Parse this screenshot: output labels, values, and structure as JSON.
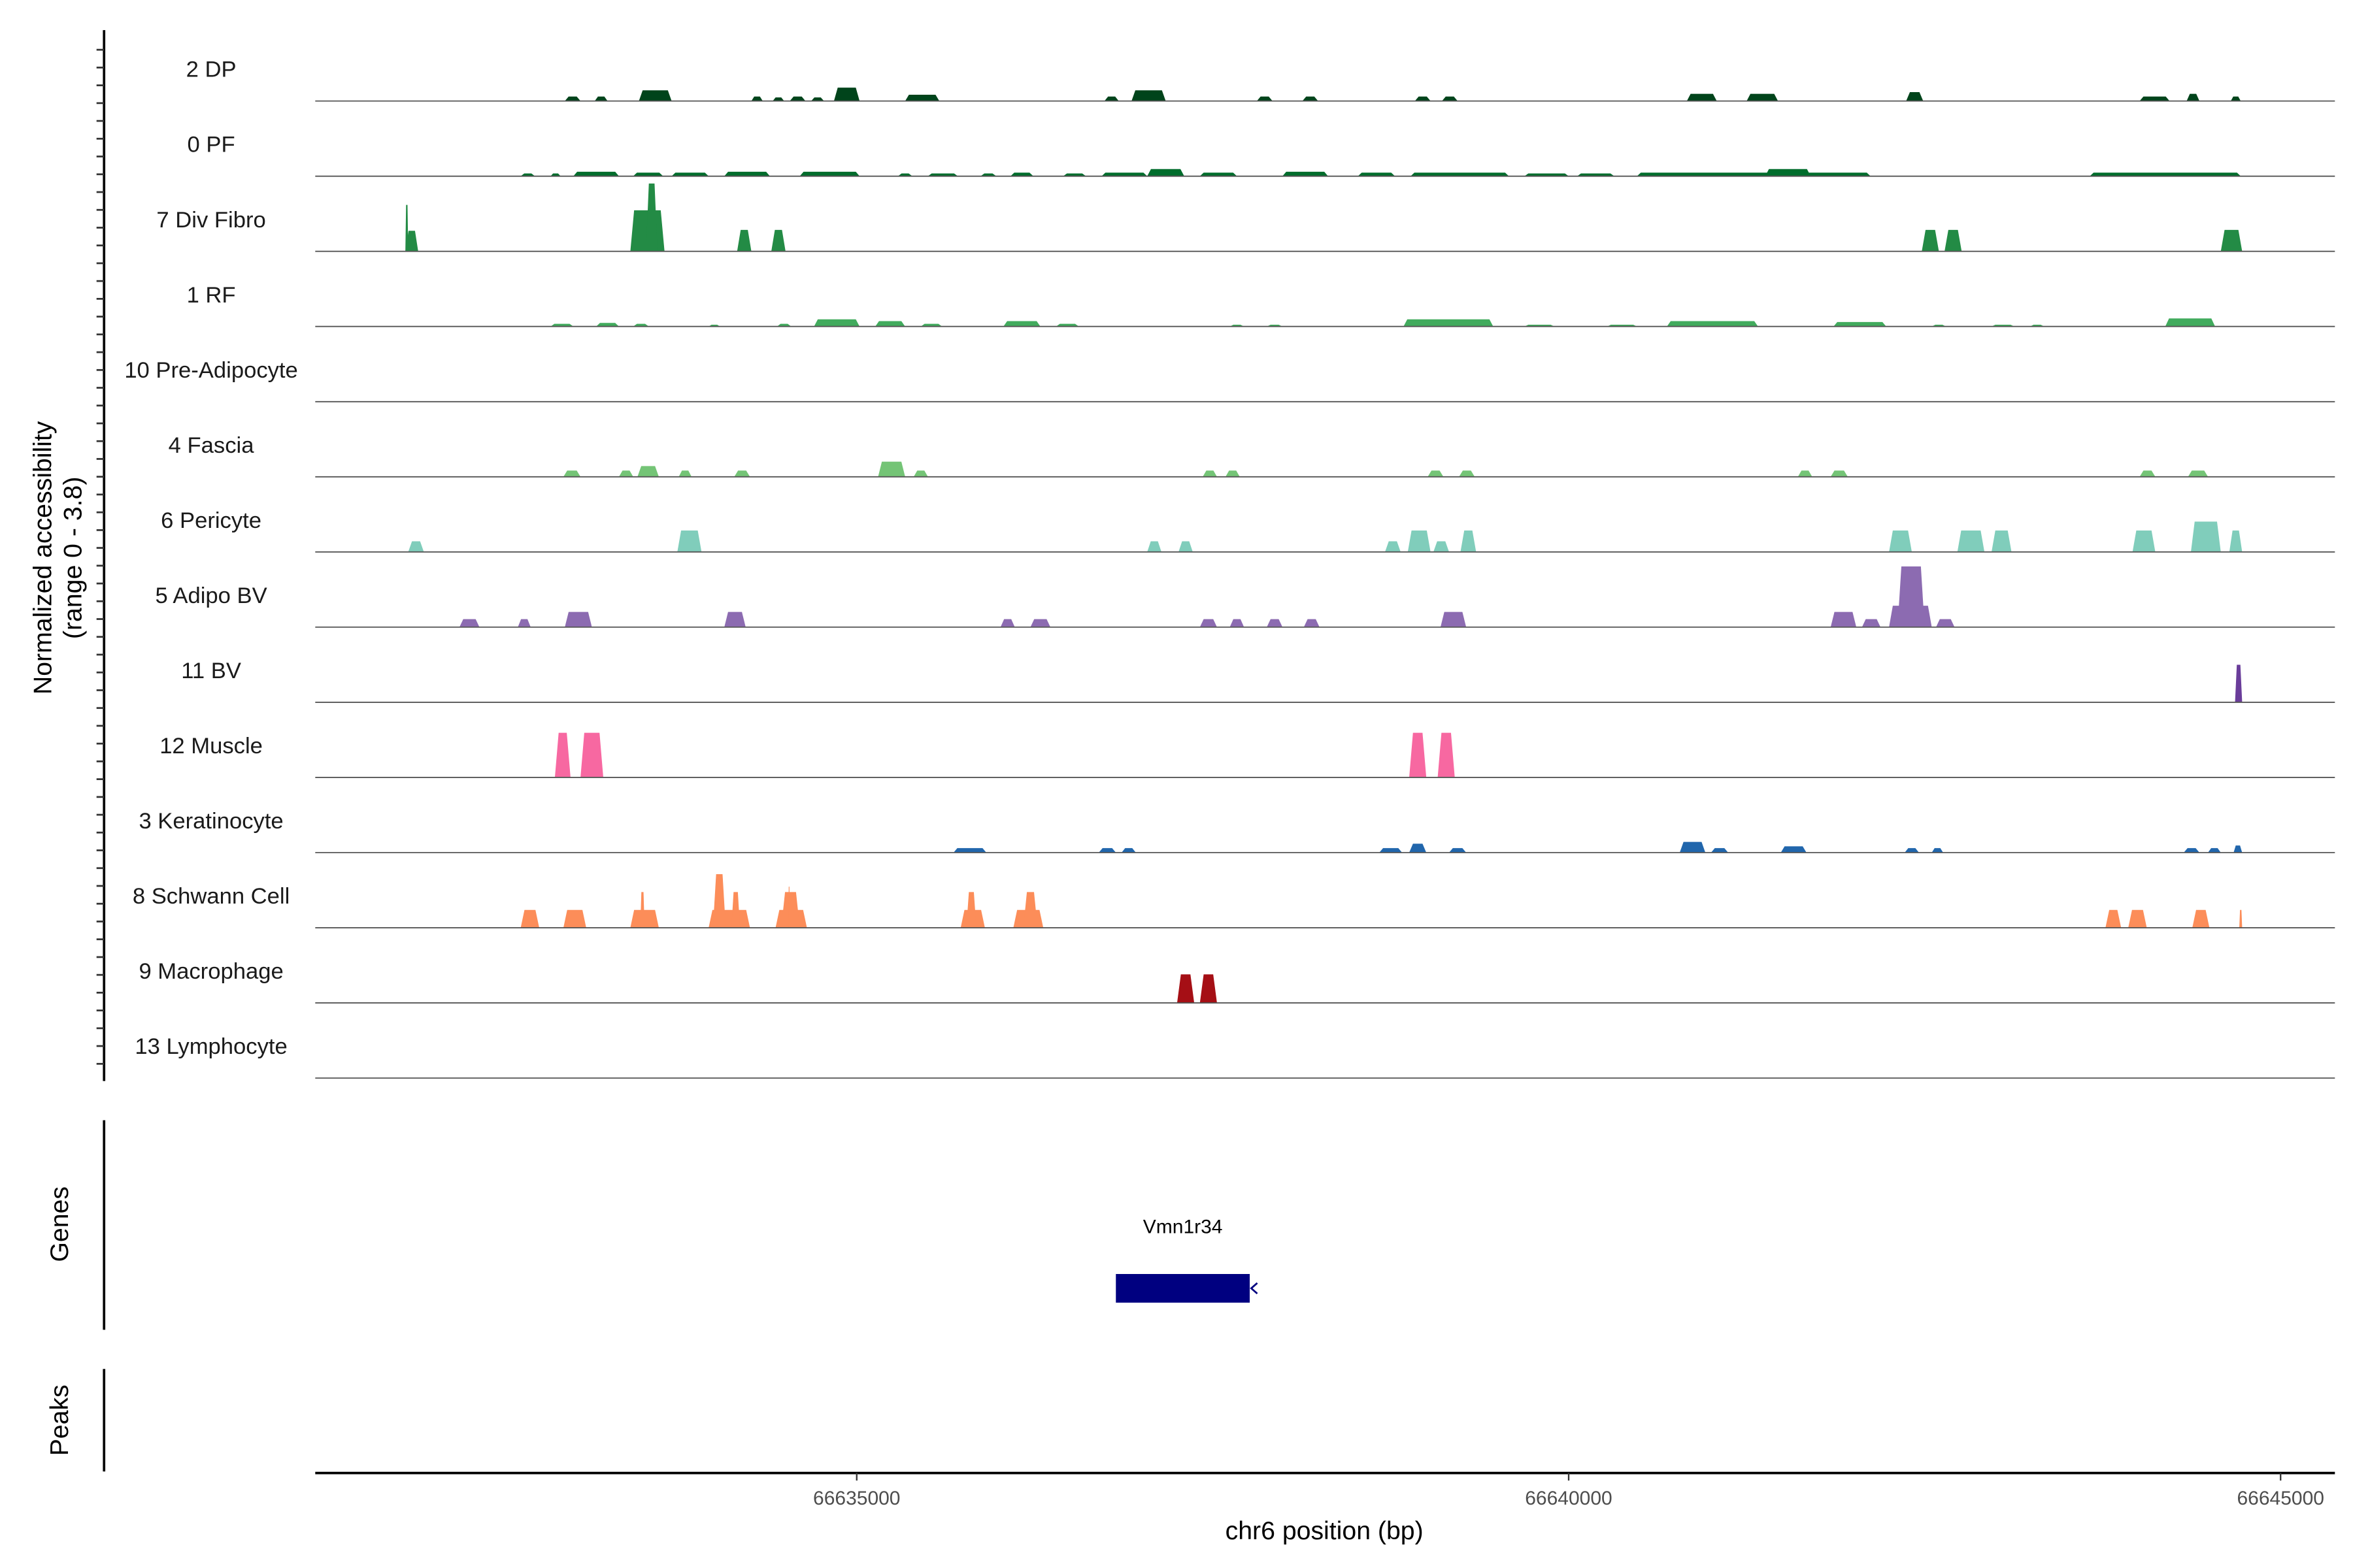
{
  "chart_data": {
    "type": "area",
    "title": "",
    "ylabel_line1": "Normalized accessibility",
    "ylabel_line2": "(range 0 - 3.8)",
    "ylim": [
      0,
      3.8
    ],
    "xlabel": "chr6 position (bp)",
    "xlim": [
      66631200,
      66645380
    ],
    "xticks": [
      66635000,
      66640000,
      66645000
    ],
    "xtick_labels": [
      "66635000",
      "66640000",
      "66645000"
    ],
    "grid": false,
    "tracks": [
      {
        "name": "2 DP",
        "color": "#00441b",
        "peaks": [
          [
            66632950,
            66633060,
            0.25
          ],
          [
            66633160,
            66633250,
            0.25
          ],
          [
            66633470,
            66633700,
            0.6
          ],
          [
            66634260,
            66634340,
            0.25
          ],
          [
            66634410,
            66634490,
            0.2
          ],
          [
            66634530,
            66634640,
            0.25
          ],
          [
            66634680,
            66634770,
            0.2
          ],
          [
            66634840,
            66635020,
            0.75
          ],
          [
            66635340,
            66635580,
            0.35
          ],
          [
            66636740,
            66636840,
            0.25
          ],
          [
            66636930,
            66637170,
            0.6
          ],
          [
            66637810,
            66637920,
            0.25
          ],
          [
            66638130,
            66638240,
            0.25
          ],
          [
            66638920,
            66639030,
            0.25
          ],
          [
            66639110,
            66639220,
            0.25
          ],
          [
            66640830,
            66641040,
            0.4
          ],
          [
            66641250,
            66641470,
            0.4
          ],
          [
            66642370,
            66642490,
            0.5
          ],
          [
            66644010,
            66644220,
            0.25
          ],
          [
            66644340,
            66644430,
            0.4
          ],
          [
            66644650,
            66644720,
            0.25
          ]
        ]
      },
      {
        "name": "0 PF",
        "color": "#006d2c",
        "peaks": [
          [
            66632640,
            66632740,
            0.15
          ],
          [
            66632850,
            66632920,
            0.15
          ],
          [
            66633010,
            66633330,
            0.25
          ],
          [
            66633430,
            66633640,
            0.2
          ],
          [
            66633700,
            66633960,
            0.2
          ],
          [
            66634070,
            66634390,
            0.25
          ],
          [
            66634600,
            66635020,
            0.25
          ],
          [
            66635290,
            66635390,
            0.15
          ],
          [
            66635500,
            66635710,
            0.15
          ],
          [
            66635870,
            66635980,
            0.15
          ],
          [
            66636080,
            66636240,
            0.2
          ],
          [
            66636450,
            66636610,
            0.15
          ],
          [
            66636720,
            66637040,
            0.2
          ],
          [
            66637040,
            66637300,
            0.4
          ],
          [
            66637410,
            66637670,
            0.2
          ],
          [
            66637990,
            66638310,
            0.25
          ],
          [
            66638520,
            66638780,
            0.2
          ],
          [
            66638890,
            66639580,
            0.2
          ],
          [
            66639690,
            66640000,
            0.15
          ],
          [
            66640060,
            66640320,
            0.15
          ],
          [
            66640480,
            66642120,
            0.2
          ],
          [
            66641380,
            66641700,
            0.4
          ],
          [
            66643660,
            66644720,
            0.2
          ]
        ]
      },
      {
        "name": "7 Div Fibro",
        "color": "#238b45",
        "peaks": [
          [
            66631830,
            66631920,
            1.15
          ],
          [
            66631830,
            66631850,
            2.6
          ],
          [
            66633410,
            66633650,
            2.3
          ],
          [
            66633520,
            66633600,
            3.8
          ],
          [
            66634160,
            66634260,
            1.2
          ],
          [
            66634400,
            66634500,
            1.2
          ],
          [
            66642480,
            66642600,
            1.2
          ],
          [
            66642640,
            66642760,
            1.2
          ],
          [
            66644580,
            66644730,
            1.2
          ]
        ]
      },
      {
        "name": "1 RF",
        "color": "#41ab5d",
        "peaks": [
          [
            66632850,
            66633010,
            0.15
          ],
          [
            66633170,
            66633330,
            0.2
          ],
          [
            66633430,
            66633540,
            0.15
          ],
          [
            66633960,
            66634040,
            0.1
          ],
          [
            66634440,
            66634540,
            0.15
          ],
          [
            66634700,
            66635020,
            0.4
          ],
          [
            66635130,
            66635340,
            0.3
          ],
          [
            66635450,
            66635600,
            0.15
          ],
          [
            66636030,
            66636290,
            0.3
          ],
          [
            66636400,
            66636560,
            0.15
          ],
          [
            66637620,
            66637720,
            0.1
          ],
          [
            66637880,
            66637990,
            0.1
          ],
          [
            66638840,
            66639470,
            0.4
          ],
          [
            66639690,
            66639900,
            0.1
          ],
          [
            66640270,
            66640480,
            0.1
          ],
          [
            66640690,
            66641330,
            0.3
          ],
          [
            66641860,
            66642230,
            0.25
          ],
          [
            66642550,
            66642650,
            0.1
          ],
          [
            66642970,
            66643130,
            0.1
          ],
          [
            66643240,
            66643340,
            0.1
          ],
          [
            66644190,
            66644540,
            0.45
          ]
        ]
      },
      {
        "name": "10 Pre-Adipocyte",
        "color": "#74c476",
        "peaks": []
      },
      {
        "name": "4 Fascia",
        "color": "#74c476",
        "peaks": [
          [
            66632940,
            66633060,
            0.35
          ],
          [
            66633330,
            66633430,
            0.35
          ],
          [
            66633460,
            66633610,
            0.6
          ],
          [
            66633750,
            66633840,
            0.35
          ],
          [
            66634140,
            66634250,
            0.35
          ],
          [
            66635150,
            66635340,
            0.85
          ],
          [
            66635400,
            66635500,
            0.35
          ],
          [
            66637430,
            66637530,
            0.35
          ],
          [
            66637590,
            66637690,
            0.35
          ],
          [
            66639010,
            66639120,
            0.35
          ],
          [
            66639230,
            66639340,
            0.35
          ],
          [
            66641610,
            66641710,
            0.35
          ],
          [
            66641840,
            66641960,
            0.35
          ],
          [
            66644010,
            66644120,
            0.35
          ],
          [
            66644350,
            66644490,
            0.35
          ]
        ]
      },
      {
        "name": "6 Pericyte",
        "color": "#80cdbb",
        "peaks": [
          [
            66631850,
            66631960,
            0.6
          ],
          [
            66633740,
            66633910,
            1.2
          ],
          [
            66637040,
            66637140,
            0.6
          ],
          [
            66637260,
            66637360,
            0.6
          ],
          [
            66638710,
            66638820,
            0.6
          ],
          [
            66638870,
            66639030,
            1.2
          ],
          [
            66639050,
            66639160,
            0.6
          ],
          [
            66639240,
            66639350,
            1.2
          ],
          [
            66642250,
            66642410,
            1.2
          ],
          [
            66642730,
            66642920,
            1.2
          ],
          [
            66642970,
            66643110,
            1.2
          ],
          [
            66643960,
            66644120,
            1.2
          ],
          [
            66644370,
            66644580,
            1.7
          ],
          [
            66644640,
            66644730,
            1.2
          ]
        ]
      },
      {
        "name": "5 Adipo BV",
        "color": "#8c6bb1",
        "peaks": [
          [
            66632210,
            66632350,
            0.45
          ],
          [
            66632620,
            66632710,
            0.45
          ],
          [
            66632950,
            66633140,
            0.85
          ],
          [
            66634070,
            66634220,
            0.85
          ],
          [
            66636010,
            66636110,
            0.45
          ],
          [
            66636220,
            66636360,
            0.45
          ],
          [
            66637410,
            66637530,
            0.45
          ],
          [
            66637620,
            66637720,
            0.45
          ],
          [
            66637880,
            66637990,
            0.45
          ],
          [
            66638140,
            66638250,
            0.45
          ],
          [
            66639100,
            66639280,
            0.85
          ],
          [
            66641840,
            66642020,
            0.85
          ],
          [
            66642060,
            66642190,
            0.45
          ],
          [
            66642250,
            66642550,
            1.2
          ],
          [
            66642310,
            66642500,
            3.4
          ],
          [
            66642580,
            66642710,
            0.45
          ]
        ]
      },
      {
        "name": "11 BV",
        "color": "#6a3d9a",
        "peaks": [
          [
            66644680,
            66644730,
            2.1
          ]
        ]
      },
      {
        "name": "12 Muscle",
        "color": "#f768a1",
        "peaks": [
          [
            66632880,
            66632990,
            2.5
          ],
          [
            66633060,
            66633220,
            2.5
          ],
          [
            66638880,
            66639000,
            2.5
          ],
          [
            66639080,
            66639200,
            2.5
          ]
        ]
      },
      {
        "name": "3 Keratinocyte",
        "color": "#2166ac",
        "peaks": [
          [
            66635680,
            66635910,
            0.25
          ],
          [
            66636700,
            66636820,
            0.25
          ],
          [
            66636860,
            66636960,
            0.25
          ],
          [
            66638670,
            66638830,
            0.25
          ],
          [
            66638880,
            66639000,
            0.5
          ],
          [
            66639160,
            66639280,
            0.25
          ],
          [
            66640780,
            66640960,
            0.6
          ],
          [
            66641000,
            66641120,
            0.25
          ],
          [
            66641490,
            66641670,
            0.35
          ],
          [
            66642360,
            66642460,
            0.25
          ],
          [
            66642550,
            66642630,
            0.25
          ],
          [
            66644320,
            66644430,
            0.25
          ],
          [
            66644490,
            66644580,
            0.25
          ],
          [
            66644670,
            66644730,
            0.4
          ]
        ]
      },
      {
        "name": "8 Schwann Cell",
        "color": "#fc8d59",
        "peaks": [
          [
            66632640,
            66632770,
            1.0
          ],
          [
            66632940,
            66633100,
            1.0
          ],
          [
            66633410,
            66633610,
            1.0
          ],
          [
            66633480,
            66633510,
            2.0
          ],
          [
            66633960,
            66634250,
            1.0
          ],
          [
            66633990,
            66634080,
            3.0
          ],
          [
            66634120,
            66634180,
            2.0
          ],
          [
            66634430,
            66634650,
            1.0
          ],
          [
            66634470,
            66634600,
            2.0
          ],
          [
            66634520,
            66634530,
            2.3
          ],
          [
            66635730,
            66635900,
            1.0
          ],
          [
            66635770,
            66635840,
            2.0
          ],
          [
            66636100,
            66636310,
            1.0
          ],
          [
            66636170,
            66636270,
            2.0
          ],
          [
            66643770,
            66643880,
            1.0
          ],
          [
            66643930,
            66644060,
            1.0
          ],
          [
            66644380,
            66644500,
            1.0
          ],
          [
            66644710,
            66644730,
            1.0
          ]
        ]
      },
      {
        "name": "9 Macrophage",
        "color": "#a50f15",
        "peaks": [
          [
            66637250,
            66637370,
            1.6
          ],
          [
            66637410,
            66637530,
            1.6
          ]
        ]
      },
      {
        "name": "13 Lymphocyte",
        "color": "#67000d",
        "peaks": []
      }
    ],
    "genes_panel_label": "Genes",
    "genes": [
      {
        "name": "Vmn1r34",
        "start": 66636820,
        "end": 66637760,
        "strand": "-",
        "color": "#000080"
      }
    ],
    "peaks_panel_label": "Peaks",
    "peaks_panel": []
  }
}
